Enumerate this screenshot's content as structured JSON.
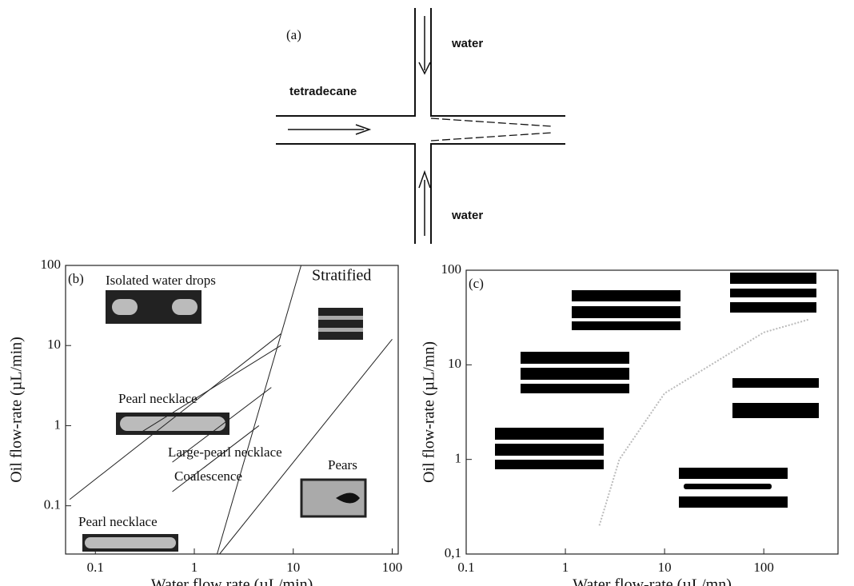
{
  "diagram": {
    "label": "(a)",
    "top_label": "water",
    "left_label": "tetradecane",
    "bottom_label": "water"
  },
  "chart_data": [
    {
      "type": "line",
      "label": "(b)",
      "xlabel": "Water flow rate (µL/min)",
      "ylabel": "Oil flow-rate (µL/min)",
      "xscale": "log",
      "yscale": "log",
      "xlim": [
        0.05,
        115
      ],
      "ylim": [
        0.025,
        100
      ],
      "xticks": [
        0.1,
        1,
        10,
        100
      ],
      "yticks": [
        0.1,
        1,
        10,
        100
      ],
      "annotations": [
        "Isolated water drops",
        "Stratified",
        "Pearl necklace",
        "Large-pearl necklace",
        "Coalescence",
        "Pears",
        "Pearl necklace"
      ],
      "lines": [
        {
          "x": [
            1.7,
            12
          ],
          "values": [
            0.025,
            100
          ]
        },
        {
          "x": [
            1.8,
            100
          ],
          "values": [
            0.025,
            12
          ]
        },
        {
          "x": [
            0.055,
            7.5
          ],
          "values": [
            0.12,
            14
          ]
        },
        {
          "x": [
            0.3,
            7.5
          ],
          "values": [
            0.85,
            10
          ]
        },
        {
          "x": [
            0.6,
            6
          ],
          "values": [
            0.35,
            3
          ]
        },
        {
          "x": [
            0.6,
            4.5
          ],
          "values": [
            0.15,
            1
          ]
        }
      ]
    },
    {
      "type": "line",
      "label": "(c)",
      "xlabel": "Water flow-rate (µL/mn)",
      "ylabel": "Oil flow-rate (µL/mn)",
      "xscale": "log",
      "yscale": "log",
      "xlim": [
        0.1,
        560
      ],
      "ylim": [
        0.1,
        100
      ],
      "xticks": [
        0.1,
        1,
        10,
        100
      ],
      "yticks": [
        {
          "value": 0.1,
          "label": "0,1"
        },
        1,
        10,
        100
      ],
      "lines": [
        {
          "x": [
            2.2,
            3.5,
            10,
            100,
            280
          ],
          "values": [
            0.2,
            1,
            5,
            22,
            30
          ]
        }
      ]
    }
  ]
}
